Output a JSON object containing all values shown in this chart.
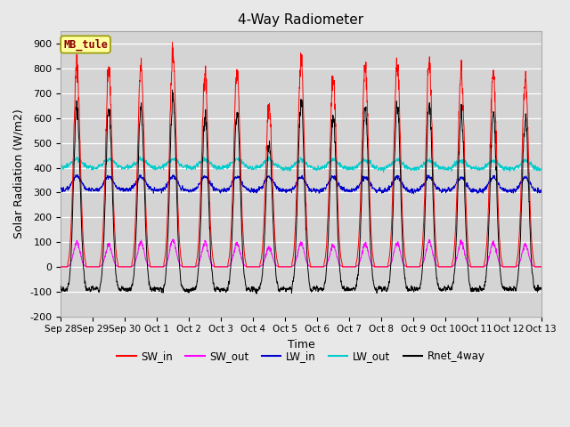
{
  "title": "4-Way Radiometer",
  "xlabel": "Time",
  "ylabel": "Solar Radiation (W/m2)",
  "ylim": [
    -200,
    950
  ],
  "yticks": [
    -200,
    -100,
    0,
    100,
    200,
    300,
    400,
    500,
    600,
    700,
    800,
    900
  ],
  "x_tick_labels": [
    "Sep 28",
    "Sep 29",
    "Sep 30",
    "Oct 1",
    "Oct 2",
    "Oct 3",
    "Oct 4",
    "Oct 5",
    "Oct 6",
    "Oct 7",
    "Oct 8",
    "Oct 9",
    "Oct 10",
    "Oct 11",
    "Oct 12",
    "Oct 13"
  ],
  "station_label": "MB_tule",
  "fig_bg_color": "#e8e8e8",
  "plot_bg_color": "#d4d4d4",
  "grid_color": "#ffffff",
  "colors": {
    "SW_in": "#ff0000",
    "SW_out": "#ff00ff",
    "LW_in": "#0000cc",
    "LW_out": "#00cccc",
    "Rnet_4way": "#000000"
  },
  "legend_labels": [
    "SW_in",
    "SW_out",
    "LW_in",
    "LW_out",
    "Rnet_4way"
  ],
  "n_days": 15,
  "points_per_day": 144
}
